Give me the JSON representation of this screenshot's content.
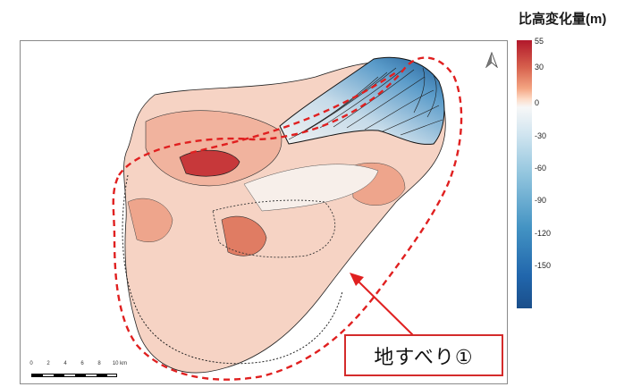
{
  "legend": {
    "title": "比高変化量(m)",
    "ticks": [
      "55",
      "30",
      "0",
      "-30",
      "-60",
      "-90",
      "-120",
      "-150"
    ]
  },
  "scale_bar": {
    "ticks": [
      "0",
      "2",
      "4",
      "6",
      "8",
      "10 km"
    ]
  },
  "callout": {
    "label": "地すべり①"
  },
  "colors": {
    "uplift": "#c0392b",
    "subsidence": "#2166ac",
    "highlight_outline": "#e02020"
  },
  "icons": {
    "north": "north-arrow-icon"
  }
}
